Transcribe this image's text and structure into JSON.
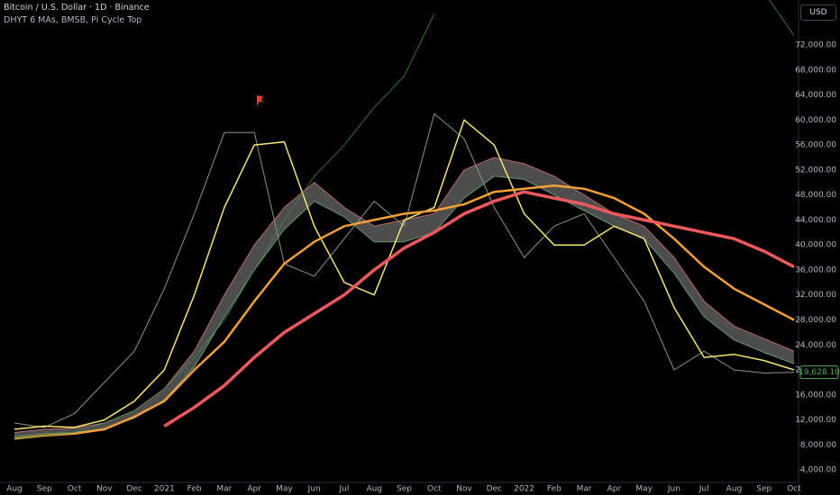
{
  "header": {
    "symbol": "Bitcoin / U.S. Dollar · 1D · Binance",
    "indicators": "DHYT 6 MAs, BMSB, Pi Cycle Top",
    "currency_button": "USD"
  },
  "chart_data": {
    "type": "line",
    "categories": [
      "Aug",
      "Sep",
      "Oct",
      "Nov",
      "Dec",
      "2021",
      "Feb",
      "Mar",
      "Apr",
      "May",
      "Jun",
      "Jul",
      "Aug",
      "Sep",
      "Oct",
      "Nov",
      "Dec",
      "2022",
      "Feb",
      "Mar",
      "Apr",
      "May",
      "Jun",
      "Jul",
      "Aug",
      "Sep",
      "Oct"
    ],
    "ylim": [
      2000,
      79200
    ],
    "yticks": [
      {
        "value": 4000,
        "label": "4,000.00"
      },
      {
        "value": 8000,
        "label": "8,000.00"
      },
      {
        "value": 12000,
        "label": "12,000.00"
      },
      {
        "value": 16000,
        "label": "16,000.00"
      },
      {
        "value": 20000,
        "label": "20,000.00"
      },
      {
        "value": 24000,
        "label": "24,000.00"
      },
      {
        "value": 28000,
        "label": "28,000.00"
      },
      {
        "value": 32000,
        "label": "32,000.00"
      },
      {
        "value": 36000,
        "label": "36,000.00"
      },
      {
        "value": 40000,
        "label": "40,000.00"
      },
      {
        "value": 44000,
        "label": "44,000.00"
      },
      {
        "value": 48000,
        "label": "48,000.00"
      },
      {
        "value": 52000,
        "label": "52,000.00"
      },
      {
        "value": 56000,
        "label": "56,000.00"
      },
      {
        "value": 60000,
        "label": "60,000.00"
      },
      {
        "value": 64000,
        "label": "64,000.00"
      },
      {
        "value": 68000,
        "label": "68,000.00"
      },
      {
        "value": 72000,
        "label": "72,000.00"
      }
    ],
    "grid": false,
    "series": [
      {
        "color": "#7f9a86",
        "width": 1,
        "values": [
          11500,
          10800,
          13000,
          18000,
          23000,
          33000,
          45000,
          58000,
          58000,
          37000,
          35000,
          41000,
          47000,
          43000,
          61000,
          57000,
          46000,
          38000,
          43000,
          45000,
          38000,
          31000,
          20000,
          23000,
          20000,
          19500,
          19628.1
        ],
        "value_labels": [
          null,
          null,
          null,
          null,
          null,
          null,
          null,
          null,
          null,
          null,
          null,
          null,
          null,
          null,
          null,
          null,
          null,
          null,
          null,
          null,
          null,
          null,
          null,
          null,
          null,
          null,
          "19,628.10"
        ]
      },
      {
        "color": "#c0666b",
        "width": 1,
        "values": [
          10000,
          10500,
          10700,
          11500,
          13500,
          17000,
          23000,
          32000,
          40000,
          46000,
          50000,
          46000,
          43000,
          44000,
          45000,
          52000,
          54000,
          53000,
          51000,
          48000,
          45000,
          43000,
          38000,
          31000,
          27000,
          25000,
          23000
        ]
      },
      {
        "color": "#5f9a6e",
        "width": 1,
        "values": [
          9300,
          9800,
          10000,
          10600,
          12300,
          15200,
          20500,
          28500,
          36000,
          42500,
          47000,
          44500,
          40500,
          40500,
          42000,
          47500,
          51000,
          50500,
          48000,
          45500,
          43000,
          41000,
          35500,
          28500,
          24800,
          22800,
          21000
        ]
      },
      {
        "color": "#f5e66a",
        "width": 1.5,
        "values": [
          10500,
          11000,
          10800,
          12000,
          15000,
          20000,
          32000,
          46000,
          56000,
          56500,
          43000,
          34000,
          32000,
          44000,
          46000,
          60000,
          56000,
          45000,
          40000,
          40000,
          43000,
          41000,
          30000,
          22000,
          22500,
          21500,
          20000
        ]
      },
      {
        "color": "#f5a033",
        "width": 2.5,
        "values": [
          9000,
          9500,
          9800,
          10500,
          12500,
          15000,
          20000,
          24500,
          31000,
          37000,
          40500,
          43000,
          44000,
          45000,
          45500,
          46500,
          48500,
          49000,
          49500,
          49000,
          47500,
          45000,
          41000,
          36500,
          33000,
          30500,
          28000
        ]
      },
      {
        "color": "#f0585c",
        "width": 3.5,
        "values": [
          null,
          null,
          null,
          null,
          null,
          11000,
          14000,
          17500,
          22000,
          26000,
          29000,
          32000,
          36000,
          39500,
          42000,
          45000,
          47000,
          48500,
          47500,
          46500,
          45000,
          44000,
          43000,
          42000,
          41000,
          39000,
          36500
        ]
      },
      {
        "color": "#3f8a4a",
        "width": 0.8,
        "values": [
          9000,
          9500,
          10000,
          11500,
          13500,
          17000,
          22000,
          28000,
          36000,
          44000,
          51000,
          56000,
          62000,
          67000,
          77000,
          null,
          null,
          null,
          null,
          null,
          null,
          null,
          null,
          null,
          null,
          80500,
          73500
        ]
      }
    ]
  }
}
